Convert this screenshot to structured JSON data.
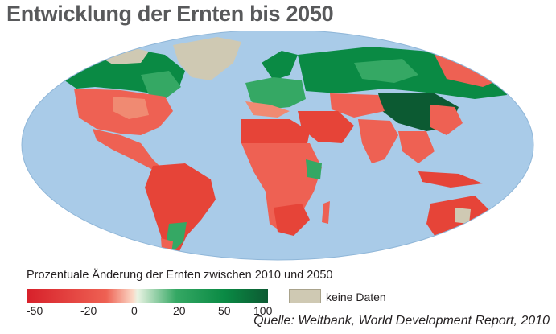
{
  "title": "Entwicklung der Ernten bis 2050",
  "legend": {
    "title": "Prozentuale Änderung der Ernten zwischen 2010 und 2050",
    "ticks": [
      "-50",
      "-20",
      "0",
      "20",
      "50",
      "100"
    ],
    "nodata_label": "keine Daten",
    "colors": {
      "minus50": "#d7202a",
      "minus20": "#ee6153",
      "zero": "#fbd8c6",
      "plus20": "#35a864",
      "plus50": "#0a8a44",
      "plus100": "#0c5a32",
      "nodata": "#cfc9b3",
      "ocean": "#a9cbe8"
    }
  },
  "source": "Quelle: Weltbank, World Development Report, 2010"
}
